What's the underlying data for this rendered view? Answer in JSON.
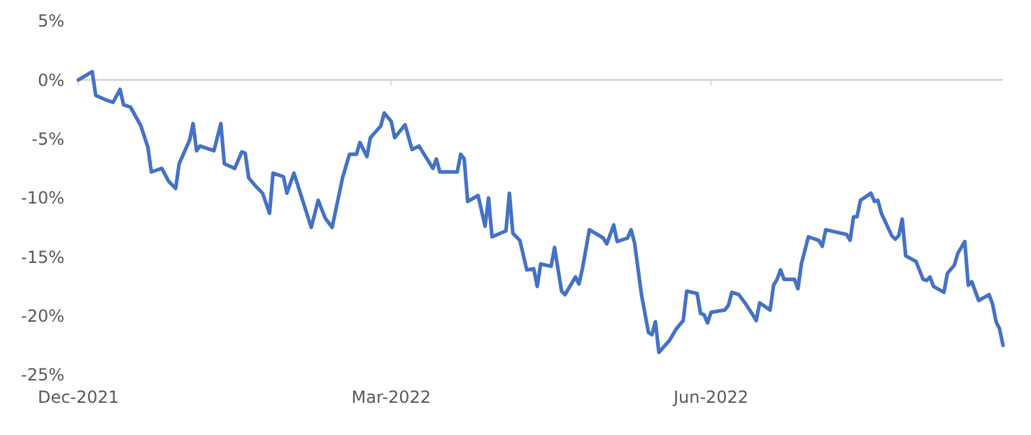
{
  "chart_data": {
    "type": "line",
    "xlim": [
      "2021-12-01",
      "2022-08-24"
    ],
    "xticks": [
      {
        "value": "2021-12-01",
        "label": "Dec-2021"
      },
      {
        "value": "2022-03-01",
        "label": "Mar-2022"
      },
      {
        "value": "2022-06-01",
        "label": "Jun-2022"
      }
    ],
    "ylim": [
      -25,
      5
    ],
    "yticks": [
      {
        "value": 5,
        "label": "5%"
      },
      {
        "value": 0,
        "label": "0%"
      },
      {
        "value": -5,
        "label": "-5%"
      },
      {
        "value": -10,
        "label": "-10%"
      },
      {
        "value": -15,
        "label": "-15%"
      },
      {
        "value": -20,
        "label": "-20%"
      },
      {
        "value": -25,
        "label": "-25%"
      }
    ],
    "marker": "none",
    "line_style": "solid",
    "series": [
      {
        "color": "#4472c4",
        "x": [
          "2021-12-01",
          "2021-12-05",
          "2021-12-06",
          "2021-12-09",
          "2021-12-11",
          "2021-12-13",
          "2021-12-14",
          "2021-12-16",
          "2021-12-19",
          "2021-12-21",
          "2021-12-22",
          "2021-12-25",
          "2021-12-27",
          "2021-12-29",
          "2021-12-30",
          "2022-01-02",
          "2022-01-03",
          "2022-01-04",
          "2022-01-05",
          "2022-01-09",
          "2022-01-11",
          "2022-01-12",
          "2022-01-15",
          "2022-01-17",
          "2022-01-18",
          "2022-01-19",
          "2022-01-21",
          "2022-01-23",
          "2022-01-25",
          "2022-01-26",
          "2022-01-29",
          "2022-01-30",
          "2022-02-01",
          "2022-02-02",
          "2022-02-06",
          "2022-02-08",
          "2022-02-10",
          "2022-02-12",
          "2022-02-15",
          "2022-02-17",
          "2022-02-19",
          "2022-02-20",
          "2022-02-22",
          "2022-02-23",
          "2022-02-26",
          "2022-02-27",
          "2022-03-01",
          "2022-03-02",
          "2022-03-05",
          "2022-03-07",
          "2022-03-09",
          "2022-03-13",
          "2022-03-14",
          "2022-03-15",
          "2022-03-20",
          "2022-03-21",
          "2022-03-22",
          "2022-03-23",
          "2022-03-26",
          "2022-03-28",
          "2022-03-29",
          "2022-03-30",
          "2022-04-03",
          "2022-04-04",
          "2022-04-05",
          "2022-04-07",
          "2022-04-09",
          "2022-04-11",
          "2022-04-12",
          "2022-04-13",
          "2022-04-16",
          "2022-04-17",
          "2022-04-19",
          "2022-04-20",
          "2022-04-23",
          "2022-04-24",
          "2022-04-25",
          "2022-04-27",
          "2022-05-01",
          "2022-05-02",
          "2022-05-04",
          "2022-05-05",
          "2022-05-08",
          "2022-05-09",
          "2022-05-10",
          "2022-05-12",
          "2022-05-14",
          "2022-05-15",
          "2022-05-16",
          "2022-05-17",
          "2022-05-20",
          "2022-05-22",
          "2022-05-24",
          "2022-05-25",
          "2022-05-28",
          "2022-05-29",
          "2022-05-30",
          "2022-05-31",
          "2022-06-01",
          "2022-06-05",
          "2022-06-06",
          "2022-06-07",
          "2022-06-09",
          "2022-06-11",
          "2022-06-13",
          "2022-06-14",
          "2022-06-15",
          "2022-06-18",
          "2022-06-19",
          "2022-06-20",
          "2022-06-21",
          "2022-06-22",
          "2022-06-25",
          "2022-06-26",
          "2022-06-27",
          "2022-06-29",
          "2022-07-02",
          "2022-07-03",
          "2022-07-04",
          "2022-07-10",
          "2022-07-11",
          "2022-07-12",
          "2022-07-13",
          "2022-07-14",
          "2022-07-17",
          "2022-07-18",
          "2022-07-19",
          "2022-07-20",
          "2022-07-23",
          "2022-07-24",
          "2022-07-25",
          "2022-07-26",
          "2022-07-27",
          "2022-07-30",
          "2022-08-01",
          "2022-08-02",
          "2022-08-03",
          "2022-08-04",
          "2022-08-07",
          "2022-08-08",
          "2022-08-10",
          "2022-08-11",
          "2022-08-13",
          "2022-08-14",
          "2022-08-15",
          "2022-08-17",
          "2022-08-20",
          "2022-08-21",
          "2022-08-22",
          "2022-08-23",
          "2022-08-24"
        ],
        "values": [
          0,
          0.7,
          -1.3,
          -1.7,
          -1.9,
          -0.8,
          -2.1,
          -2.3,
          -3.9,
          -5.7,
          -7.8,
          -7.5,
          -8.6,
          -9.2,
          -7.1,
          -5.1,
          -3.7,
          -6.0,
          -5.6,
          -6.0,
          -3.7,
          -7.1,
          -7.5,
          -6.1,
          -6.2,
          -8.3,
          -9.0,
          -9.6,
          -11.3,
          -7.9,
          -8.2,
          -9.6,
          -7.9,
          -8.8,
          -12.5,
          -10.2,
          -11.7,
          -12.5,
          -8.3,
          -6.3,
          -6.3,
          -5.3,
          -6.5,
          -4.9,
          -3.9,
          -2.8,
          -3.5,
          -4.9,
          -3.8,
          -5.9,
          -5.6,
          -7.5,
          -6.7,
          -7.8,
          -7.8,
          -6.3,
          -6.7,
          -10.3,
          -9.8,
          -12.4,
          -10.0,
          -13.3,
          -12.8,
          -9.6,
          -13.0,
          -13.6,
          -16.1,
          -16.0,
          -17.5,
          -15.6,
          -15.8,
          -14.2,
          -17.9,
          -18.2,
          -16.7,
          -17.3,
          -16.0,
          -12.7,
          -13.4,
          -13.9,
          -12.3,
          -13.7,
          -13.4,
          -12.7,
          -13.8,
          -18.2,
          -21.4,
          -21.6,
          -20.5,
          -23.1,
          -22.1,
          -21.1,
          -20.4,
          -17.9,
          -18.1,
          -19.8,
          -19.9,
          -20.6,
          -19.7,
          -19.5,
          -19.1,
          -18.0,
          -18.2,
          -19.0,
          -19.9,
          -20.4,
          -18.9,
          -19.5,
          -17.4,
          -16.9,
          -16.1,
          -16.9,
          -16.9,
          -17.7,
          -15.6,
          -13.3,
          -13.6,
          -14.1,
          -12.7,
          -13.1,
          -13.6,
          -11.6,
          -11.6,
          -10.2,
          -9.6,
          -10.3,
          -10.2,
          -11.3,
          -13.2,
          -13.5,
          -13.2,
          -11.8,
          -14.9,
          -15.4,
          -16.9,
          -17.0,
          -16.7,
          -17.5,
          -18.0,
          -16.4,
          -15.7,
          -14.7,
          -13.7,
          -17.4,
          -17.1,
          -18.7,
          -18.2,
          -19.0,
          -20.5,
          -21.1,
          -22.5
        ]
      }
    ]
  }
}
